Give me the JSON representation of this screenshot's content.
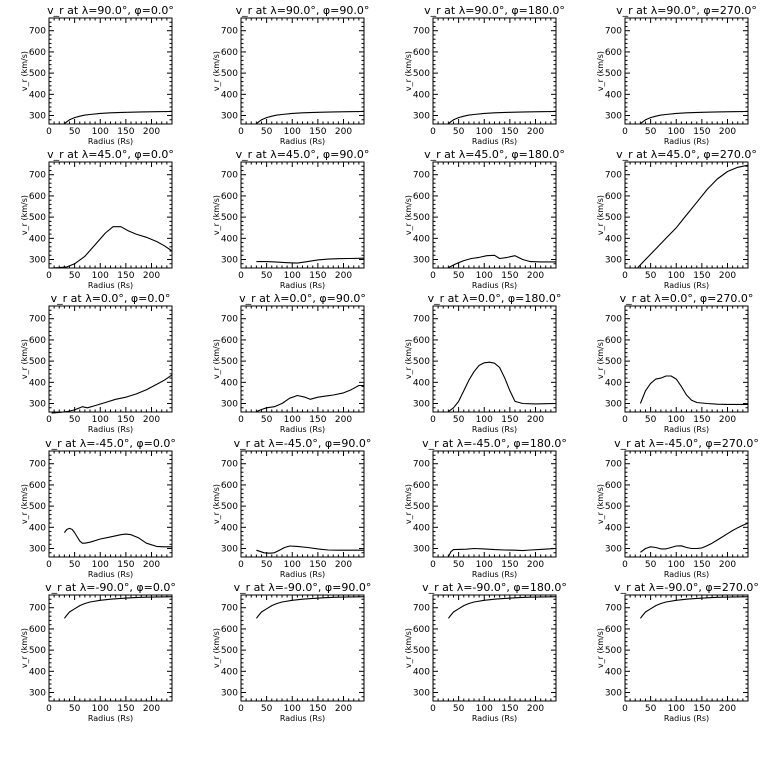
{
  "axis_defaults": {
    "xlim": [
      0,
      240
    ],
    "ylim": [
      260,
      760
    ],
    "xticks": [
      0,
      50,
      100,
      150,
      200
    ],
    "yticks": [
      300,
      400,
      500,
      600,
      700
    ],
    "xlabel": "Radius (Rs)",
    "ylabel": "v_r (km/s)",
    "grid": false
  },
  "chart_data": [
    {
      "type": "line",
      "title": "v_r at λ=90.0°, φ=0.0°",
      "x": [
        30,
        40,
        50,
        60,
        70,
        80,
        100,
        120,
        150,
        180,
        210,
        240
      ],
      "y": [
        262,
        280,
        290,
        297,
        302,
        305,
        310,
        313,
        315,
        317,
        318,
        319
      ]
    },
    {
      "type": "line",
      "title": "v_r at λ=90.0°, φ=90.0°",
      "x": [
        30,
        40,
        50,
        60,
        70,
        80,
        100,
        120,
        150,
        180,
        210,
        240
      ],
      "y": [
        262,
        280,
        290,
        297,
        302,
        305,
        310,
        313,
        315,
        317,
        318,
        319
      ]
    },
    {
      "type": "line",
      "title": "v_r at λ=90.0°, φ=180.0°",
      "x": [
        30,
        40,
        50,
        60,
        70,
        80,
        100,
        120,
        150,
        180,
        210,
        240
      ],
      "y": [
        262,
        280,
        290,
        297,
        302,
        305,
        310,
        313,
        315,
        317,
        318,
        319
      ]
    },
    {
      "type": "line",
      "title": "v_r at λ=90.0°, φ=270.0°",
      "x": [
        30,
        40,
        50,
        60,
        70,
        80,
        100,
        120,
        150,
        180,
        210,
        240
      ],
      "y": [
        262,
        280,
        290,
        297,
        302,
        305,
        310,
        313,
        315,
        317,
        318,
        319
      ]
    },
    {
      "type": "line",
      "title": "v_r at λ=45.0°, φ=0.0°",
      "x": [
        5,
        20,
        35,
        50,
        70,
        90,
        110,
        125,
        140,
        155,
        170,
        190,
        210,
        225,
        240
      ],
      "y": [
        260,
        262,
        265,
        280,
        315,
        370,
        425,
        455,
        455,
        435,
        420,
        405,
        385,
        365,
        340
      ]
    },
    {
      "type": "line",
      "title": "v_r at λ=45.0°, φ=90.0°",
      "x": [
        30,
        50,
        70,
        90,
        110,
        130,
        150,
        170,
        190,
        210,
        240
      ],
      "y": [
        290,
        290,
        288,
        285,
        283,
        290,
        298,
        302,
        304,
        305,
        306
      ]
    },
    {
      "type": "line",
      "title": "v_r at λ=45.0°, φ=180.0°",
      "x": [
        30,
        45,
        60,
        75,
        90,
        105,
        120,
        130,
        145,
        160,
        175,
        190,
        210,
        240
      ],
      "y": [
        262,
        280,
        295,
        305,
        310,
        318,
        320,
        305,
        310,
        318,
        300,
        290,
        289,
        289
      ]
    },
    {
      "type": "line",
      "title": "v_r at λ=45.0°, φ=270.0°",
      "x": [
        25,
        40,
        60,
        80,
        100,
        120,
        140,
        160,
        180,
        200,
        220,
        240
      ],
      "y": [
        262,
        300,
        350,
        400,
        450,
        510,
        570,
        630,
        680,
        715,
        735,
        745
      ]
    },
    {
      "type": "line",
      "title": "v_r at λ=0.0°, φ=0.0°",
      "x": [
        5,
        20,
        35,
        50,
        65,
        75,
        90,
        110,
        130,
        150,
        170,
        190,
        210,
        225,
        240
      ],
      "y": [
        255,
        258,
        262,
        270,
        285,
        280,
        290,
        305,
        320,
        330,
        345,
        365,
        390,
        410,
        435
      ]
    },
    {
      "type": "line",
      "title": "v_r at λ=0.0°, φ=90.0°",
      "x": [
        30,
        40,
        50,
        65,
        80,
        95,
        110,
        125,
        135,
        150,
        165,
        180,
        200,
        215,
        230,
        240
      ],
      "y": [
        262,
        272,
        280,
        285,
        300,
        325,
        338,
        330,
        320,
        330,
        335,
        340,
        350,
        365,
        385,
        385
      ]
    },
    {
      "type": "line",
      "title": "v_r at λ=0.0°, φ=180.0°",
      "x": [
        30,
        40,
        50,
        60,
        70,
        80,
        90,
        100,
        110,
        120,
        130,
        140,
        150,
        160,
        175,
        200,
        220,
        240
      ],
      "y": [
        262,
        280,
        310,
        360,
        410,
        450,
        480,
        492,
        495,
        490,
        470,
        420,
        360,
        310,
        300,
        298,
        299,
        300
      ]
    },
    {
      "type": "line",
      "title": "v_r at λ=0.0°, φ=270.0°",
      "x": [
        30,
        40,
        50,
        60,
        70,
        80,
        90,
        100,
        110,
        120,
        130,
        140,
        160,
        180,
        200,
        220,
        240
      ],
      "y": [
        300,
        360,
        395,
        415,
        420,
        430,
        430,
        415,
        380,
        340,
        315,
        305,
        300,
        297,
        296,
        296,
        296
      ]
    },
    {
      "type": "line",
      "title": "v_r at λ=-45.0°, φ=0.0°",
      "x": [
        30,
        35,
        40,
        45,
        50,
        55,
        60,
        65,
        70,
        80,
        100,
        120,
        140,
        150,
        160,
        175,
        190,
        210,
        225,
        240
      ],
      "y": [
        375,
        390,
        395,
        390,
        375,
        355,
        335,
        325,
        325,
        330,
        345,
        355,
        365,
        368,
        365,
        350,
        325,
        310,
        308,
        308
      ]
    },
    {
      "type": "line",
      "title": "v_r at λ=-45.0°, φ=90.0°",
      "x": [
        30,
        45,
        55,
        65,
        75,
        85,
        95,
        110,
        130,
        150,
        170,
        190,
        215,
        240
      ],
      "y": [
        292,
        280,
        278,
        280,
        292,
        305,
        312,
        310,
        305,
        298,
        293,
        292,
        292,
        292
      ]
    },
    {
      "type": "line",
      "title": "v_r at λ=-45.0°, φ=180.0°",
      "x": [
        30,
        35,
        40,
        50,
        65,
        80,
        100,
        120,
        140,
        160,
        175,
        190,
        210,
        225,
        240
      ],
      "y": [
        262,
        285,
        295,
        296,
        297,
        300,
        298,
        295,
        293,
        292,
        290,
        293,
        296,
        298,
        300
      ]
    },
    {
      "type": "line",
      "title": "v_r at λ=-45.0°, φ=270.0°",
      "x": [
        30,
        40,
        50,
        60,
        70,
        80,
        90,
        100,
        110,
        120,
        130,
        140,
        150,
        160,
        170,
        180,
        190,
        200,
        210,
        220,
        230,
        240
      ],
      "y": [
        282,
        300,
        308,
        305,
        298,
        298,
        305,
        312,
        313,
        305,
        300,
        300,
        303,
        313,
        325,
        340,
        355,
        370,
        385,
        398,
        410,
        420
      ]
    },
    {
      "type": "line",
      "title": "v_r at λ=-90.0°, φ=0.0°",
      "x": [
        30,
        35,
        40,
        50,
        60,
        70,
        80,
        100,
        120,
        140,
        160,
        180,
        200,
        220,
        240
      ],
      "y": [
        650,
        665,
        680,
        695,
        710,
        720,
        727,
        735,
        740,
        744,
        747,
        749,
        750,
        751,
        752
      ]
    },
    {
      "type": "line",
      "title": "v_r at λ=-90.0°, φ=90.0°",
      "x": [
        30,
        35,
        40,
        50,
        60,
        70,
        80,
        100,
        120,
        140,
        160,
        180,
        200,
        220,
        240
      ],
      "y": [
        650,
        665,
        680,
        695,
        710,
        720,
        727,
        735,
        740,
        744,
        747,
        749,
        750,
        751,
        752
      ]
    },
    {
      "type": "line",
      "title": "v_r at λ=-90.0°, φ=180.0°",
      "x": [
        30,
        35,
        40,
        50,
        60,
        70,
        80,
        100,
        120,
        140,
        160,
        180,
        200,
        220,
        240
      ],
      "y": [
        650,
        665,
        680,
        695,
        710,
        720,
        727,
        735,
        740,
        744,
        747,
        749,
        750,
        751,
        752
      ]
    },
    {
      "type": "line",
      "title": "v_r at λ=-90.0°, φ=270.0°",
      "x": [
        30,
        35,
        40,
        50,
        60,
        70,
        80,
        100,
        120,
        140,
        160,
        180,
        200,
        220,
        240
      ],
      "y": [
        650,
        665,
        680,
        695,
        710,
        720,
        727,
        735,
        740,
        744,
        747,
        749,
        750,
        751,
        752
      ]
    }
  ]
}
